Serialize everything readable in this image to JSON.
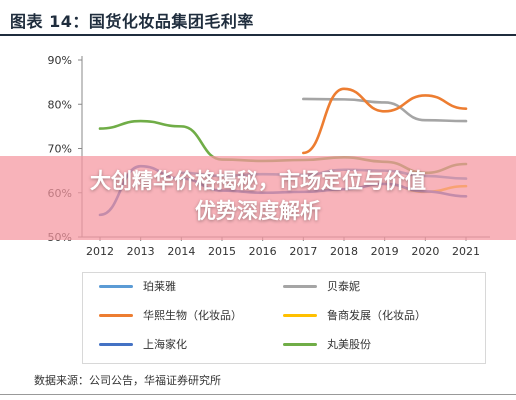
{
  "title": "图表 14：国货化妆品集团毛利率",
  "overlay": {
    "line1": "大创精华价格揭秘，市场定位与价值",
    "line2": "优势深度解析"
  },
  "source": "数据来源：公司公告，华福证券研究所",
  "chart_data": {
    "type": "line",
    "x": [
      "2012",
      "2013",
      "2014",
      "2015",
      "2016",
      "2017",
      "2018",
      "2019",
      "2020",
      "2021"
    ],
    "y_ticks": [
      "50%",
      "60%",
      "70%",
      "80%",
      "90%"
    ],
    "ylim": [
      50,
      90
    ],
    "grid": false,
    "legend_position": "bottom",
    "series": [
      {
        "name": "珀莱雅",
        "color": "#5b9bd5",
        "values": [
          null,
          null,
          64.5,
          63.8,
          64.2,
          64.0,
          65.2,
          65.0,
          63.8,
          63.2
        ]
      },
      {
        "name": "贝泰妮",
        "color": "#a5a5a5",
        "values": [
          null,
          null,
          null,
          null,
          null,
          81.2,
          81.1,
          80.4,
          76.4,
          76.2
        ]
      },
      {
        "name": "华熙生物（化妆品）",
        "color": "#ed7d31",
        "values": [
          null,
          null,
          null,
          null,
          null,
          69.0,
          83.5,
          78.4,
          82.0,
          79.0
        ]
      },
      {
        "name": "鲁商发展（化妆品）",
        "color": "#ffc000",
        "values": [
          null,
          null,
          null,
          null,
          null,
          null,
          null,
          62.0,
          60.2,
          61.5
        ]
      },
      {
        "name": "上海家化",
        "color": "#4472c4",
        "values": [
          55.0,
          66.0,
          63.2,
          60.5,
          60.0,
          60.2,
          60.8,
          62.0,
          60.3,
          59.2
        ]
      },
      {
        "name": "丸美股份",
        "color": "#70ad47",
        "values": [
          74.5,
          76.2,
          75.0,
          67.5,
          67.2,
          67.4,
          68.0,
          67.0,
          64.5,
          66.5
        ]
      }
    ]
  }
}
